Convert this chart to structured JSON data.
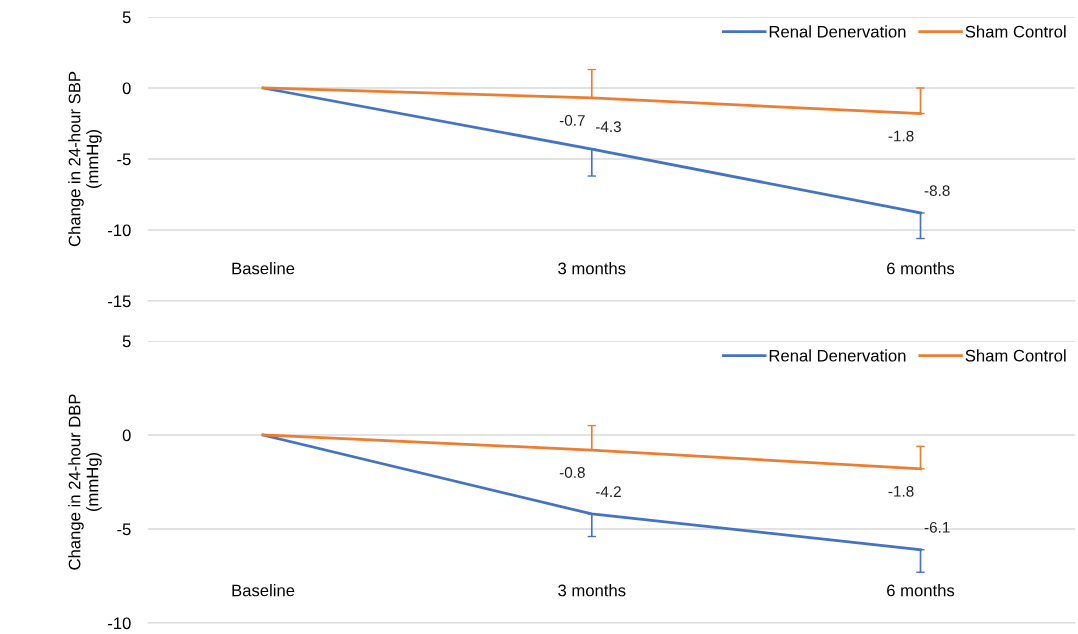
{
  "chart_data": [
    {
      "type": "line",
      "ylabel": "Change in 24-hour SBP\n(mmHg)",
      "categories": [
        "Baseline",
        "3 months",
        "6 months"
      ],
      "ylim": [
        -15,
        5
      ],
      "yticks": [
        -15,
        -10,
        -5,
        0,
        5
      ],
      "grid": "y",
      "legend": "top right",
      "marker": "none",
      "line_style": "solid",
      "series": [
        {
          "name": "Renal Denervation",
          "color": "#4472c4",
          "values": [
            0,
            -4.3,
            -8.8
          ],
          "value_labels": [
            null,
            "-4.3",
            "-8.8"
          ],
          "errors": [
            null,
            [
              -6.2,
              -4.3
            ],
            [
              -10.6,
              -8.8
            ]
          ]
        },
        {
          "name": "Sham Control",
          "color": "#ed7d31",
          "values": [
            0,
            -0.7,
            -1.8
          ],
          "value_labels": [
            null,
            "-0.7",
            "-1.8"
          ],
          "errors": [
            null,
            [
              -0.7,
              1.3
            ],
            [
              -1.8,
              0.0
            ]
          ]
        }
      ]
    },
    {
      "type": "line",
      "ylabel": "Change in 24-hour DBP\n(mmHg)",
      "categories": [
        "Baseline",
        "3 months",
        "6 months"
      ],
      "ylim": [
        -10,
        5
      ],
      "yticks": [
        -10,
        -5,
        0,
        5
      ],
      "grid": "y",
      "legend": "top right",
      "marker": "none",
      "line_style": "solid",
      "series": [
        {
          "name": "Renal Denervation",
          "color": "#4472c4",
          "values": [
            0,
            -4.2,
            -6.1
          ],
          "value_labels": [
            null,
            "-4.2",
            "-6.1"
          ],
          "errors": [
            null,
            [
              -5.4,
              -4.2
            ],
            [
              -7.3,
              -6.1
            ]
          ]
        },
        {
          "name": "Sham Control",
          "color": "#ed7d31",
          "values": [
            0,
            -0.8,
            -1.8
          ],
          "value_labels": [
            null,
            "-0.8",
            "-1.8"
          ],
          "errors": [
            null,
            [
              -0.8,
              0.5
            ],
            [
              -1.8,
              -0.6
            ]
          ]
        }
      ]
    }
  ]
}
